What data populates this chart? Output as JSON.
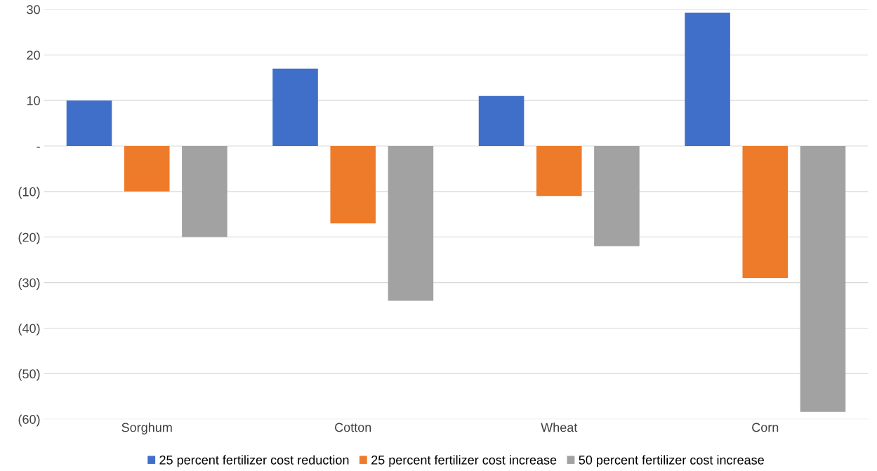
{
  "chart_data": {
    "type": "bar",
    "categories": [
      "Sorghum",
      "Cotton",
      "Wheat",
      "Corn"
    ],
    "series": [
      {
        "name": "25 percent fertilizer cost reduction",
        "color": "#3f6fc9",
        "values": [
          10,
          17,
          11,
          29.3
        ]
      },
      {
        "name": "25 percent fertilizer cost increase",
        "color": "#ee7b2a",
        "values": [
          -10,
          -17,
          -11,
          -29
        ]
      },
      {
        "name": "50 percent fertilizer cost increase",
        "color": "#a2a2a2",
        "values": [
          -20,
          -34,
          -22,
          -58.4
        ]
      }
    ],
    "ylim": [
      -60,
      30
    ],
    "yticks": [
      {
        "value": -60,
        "label": "(60)"
      },
      {
        "value": -50,
        "label": "(50)"
      },
      {
        "value": -40,
        "label": "(40)"
      },
      {
        "value": -30,
        "label": "(30)"
      },
      {
        "value": -20,
        "label": "(20)"
      },
      {
        "value": -10,
        "label": "(10)"
      },
      {
        "value": 0,
        "label": "-"
      },
      10,
      20,
      30
    ],
    "grid": "y",
    "legend": "bottom"
  }
}
